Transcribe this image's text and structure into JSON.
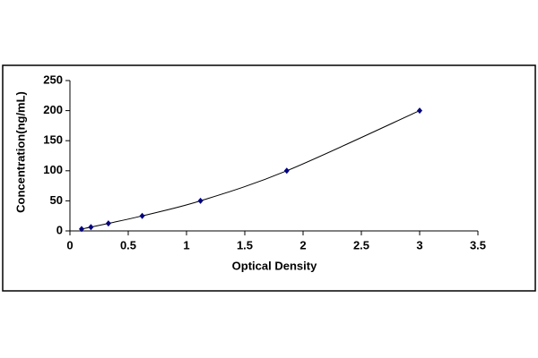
{
  "chart_data": {
    "type": "scatter",
    "x_label": "Optical Density",
    "y_label": "Concentration(ng/mL)",
    "x": [
      0.1,
      0.18,
      0.33,
      0.62,
      1.12,
      1.86,
      3.0
    ],
    "values": [
      3.12,
      6.25,
      12.5,
      25,
      50,
      100,
      200
    ],
    "color": "#000080",
    "line": true,
    "line_color": "#000000",
    "xlim": [
      0,
      3.5
    ],
    "xticks": [
      0,
      0.5,
      1,
      1.5,
      2,
      2.5,
      3,
      3.5
    ],
    "ylim": [
      0,
      250
    ],
    "yticks": [
      0,
      50,
      100,
      150,
      200,
      250
    ],
    "grid": false
  }
}
